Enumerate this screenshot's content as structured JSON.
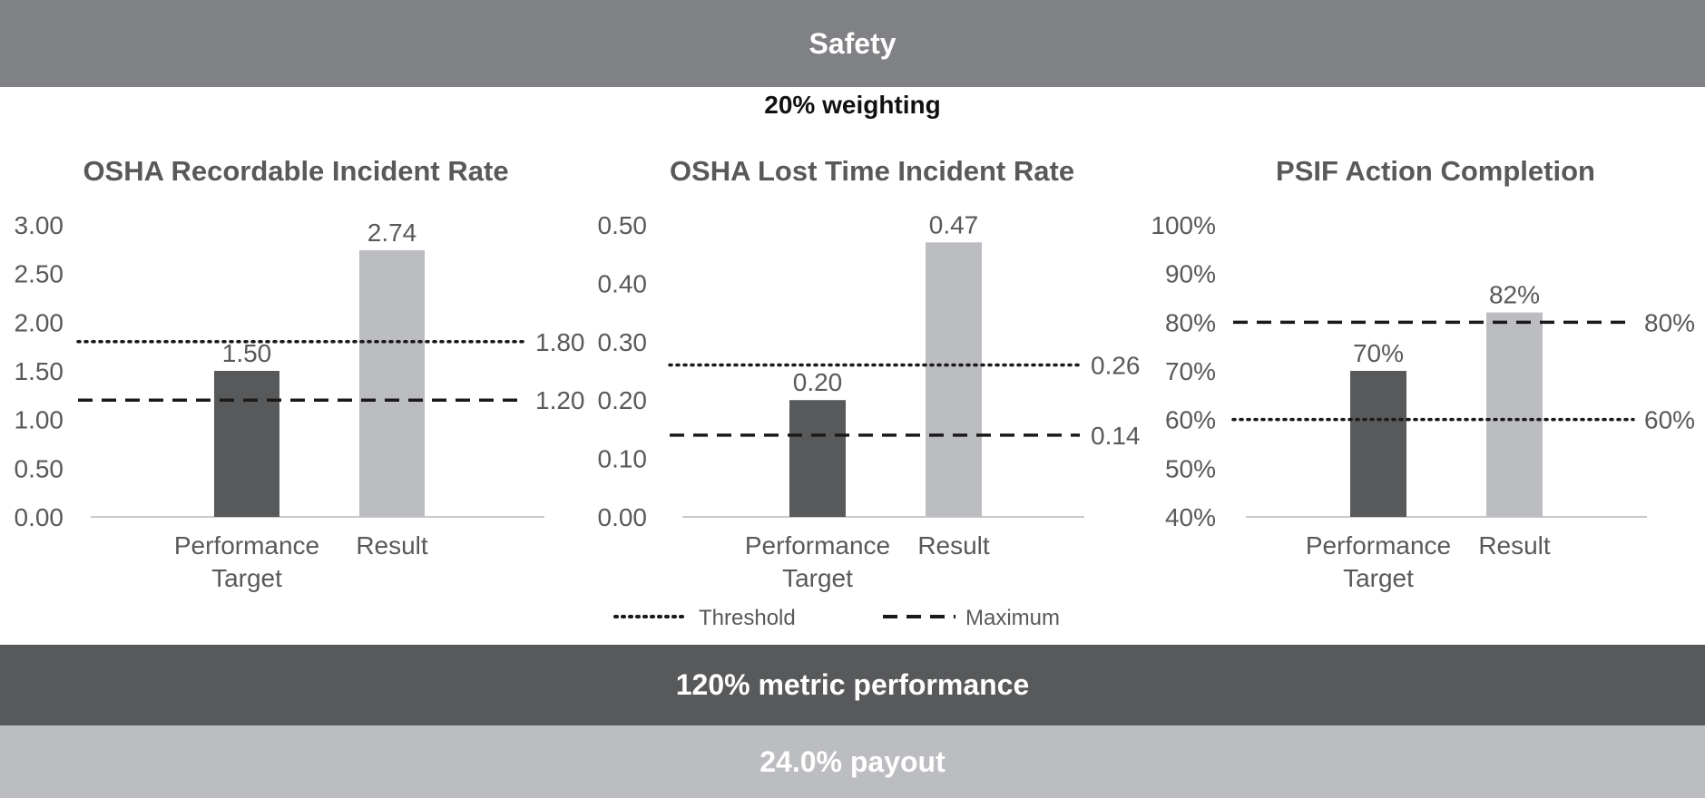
{
  "header": {
    "title": "Safety",
    "weighting": "20% weighting"
  },
  "footer": {
    "performance": "120% metric performance",
    "payout": "24.0% payout"
  },
  "legend": {
    "threshold_label": "Threshold",
    "maximum_label": "Maximum"
  },
  "colors": {
    "header_band": "#808184",
    "performance_band": "#58595b",
    "payout_band": "#bcbdc0",
    "target_bar": "#58595b",
    "result_bar": "#bcbdc0",
    "text": "#58595b"
  },
  "chart_data": [
    {
      "type": "bar",
      "title": "OSHA Recordable Incident Rate",
      "categories": [
        "Performance Target",
        "Result"
      ],
      "values": [
        1.5,
        2.74
      ],
      "value_labels": [
        "1.50",
        "2.74"
      ],
      "ylim": [
        0,
        3
      ],
      "yticks": [
        "0.00",
        "0.50",
        "1.00",
        "1.50",
        "2.00",
        "2.50",
        "3.00"
      ],
      "threshold": 1.8,
      "threshold_label": "1.80",
      "maximum": 1.2,
      "maximum_label": "1.20"
    },
    {
      "type": "bar",
      "title": "OSHA Lost Time Incident Rate",
      "categories": [
        "Performance Target",
        "Result"
      ],
      "values": [
        0.2,
        0.47
      ],
      "value_labels": [
        "0.20",
        "0.47"
      ],
      "ylim": [
        0,
        0.5
      ],
      "yticks": [
        "0.00",
        "0.10",
        "0.20",
        "0.30",
        "0.40",
        "0.50"
      ],
      "threshold": 0.26,
      "threshold_label": "0.26",
      "maximum": 0.14,
      "maximum_label": "0.14"
    },
    {
      "type": "bar",
      "title": "PSIF Action Completion",
      "categories": [
        "Performance Target",
        "Result"
      ],
      "values": [
        70,
        82
      ],
      "value_labels": [
        "70%",
        "82%"
      ],
      "ylim": [
        40,
        100
      ],
      "yticks": [
        "40%",
        "50%",
        "60%",
        "70%",
        "80%",
        "90%",
        "100%"
      ],
      "threshold": 60,
      "threshold_label": "60%",
      "maximum": 80,
      "maximum_label": "80%"
    }
  ]
}
